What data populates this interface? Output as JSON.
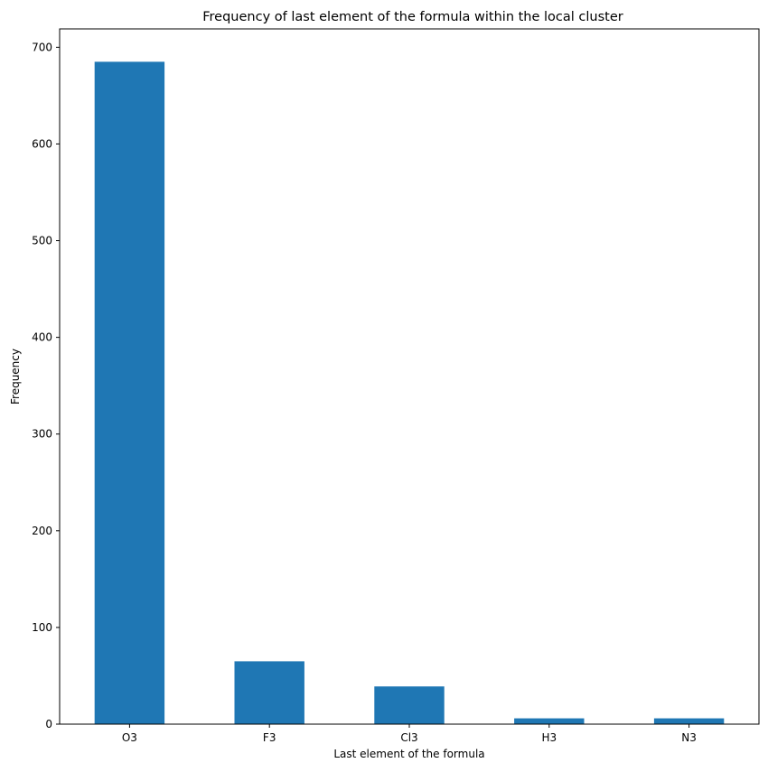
{
  "chart_data": {
    "type": "bar",
    "title": "Frequency of last element of the formula within the local cluster",
    "xlabel": "Last element of the formula",
    "ylabel": "Frequency",
    "categories": [
      "O3",
      "F3",
      "Cl3",
      "H3",
      "N3"
    ],
    "values": [
      685,
      65,
      39,
      6,
      6
    ],
    "ylim": [
      0,
      719
    ],
    "yticks": [
      0,
      100,
      200,
      300,
      400,
      500,
      600,
      700
    ],
    "grid": false,
    "bar_color": "#1f77b4"
  }
}
